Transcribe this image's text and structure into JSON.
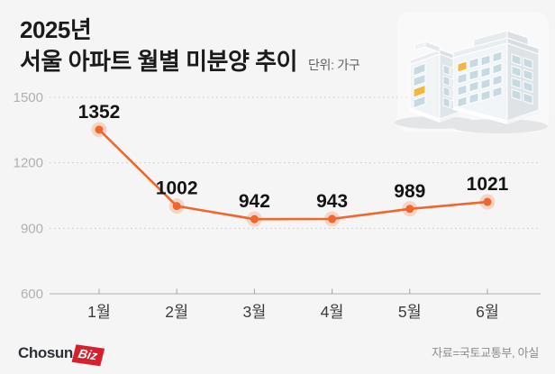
{
  "header": {
    "title_line1": "2025년",
    "title_line2": "서울 아파트 월별 미분양 추이",
    "unit_label": "단위: 가구"
  },
  "chart_data": {
    "type": "line",
    "title": "2025년 서울 아파트 월별 미분양 추이",
    "unit": "가구",
    "categories": [
      "1월",
      "2월",
      "3월",
      "4월",
      "5월",
      "6월"
    ],
    "values": [
      1352,
      1002,
      942,
      943,
      989,
      1021
    ],
    "y_ticks": [
      600,
      900,
      1200,
      1500
    ],
    "ylim": [
      600,
      1500
    ],
    "grid": "dotted-horizontal",
    "legend": "none",
    "line_color": "#f0662b",
    "point_color": "#f0662b",
    "point_halo_color": "#f0662b",
    "value_label_color": "#141414",
    "y_tick_color": "#b0b0b0",
    "x_tick_color": "#3c3c3c"
  },
  "illustration": {
    "name": "isometric-apartment-buildings",
    "highlight_window_color": "#f2b641",
    "window_color": "#c7d9e1"
  },
  "footer": {
    "logo_text": "Chosun",
    "logo_badge": "Biz",
    "logo_badge_color": "#d6202b",
    "source": "자료=국토교통부, 아실"
  }
}
